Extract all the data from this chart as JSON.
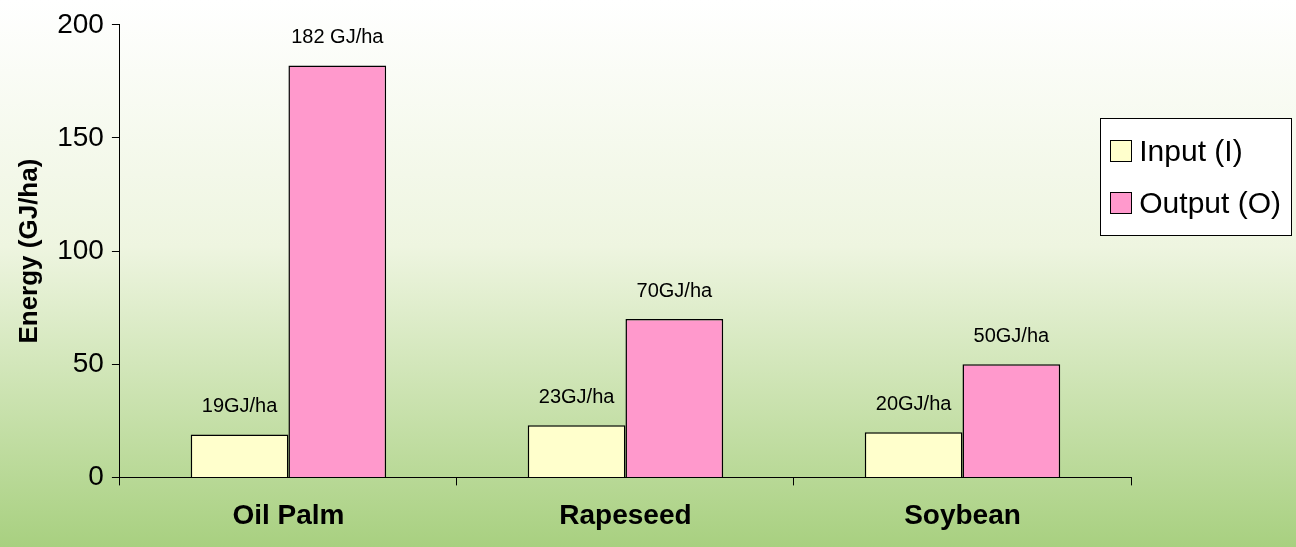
{
  "chart_data": {
    "type": "bar",
    "ylabel": "Energy (GJ/ha)",
    "categories": [
      "Oil Palm",
      "Rapeseed",
      "Soybean"
    ],
    "series": [
      {
        "name": "Input (I)",
        "color": "#ffffcc",
        "values": [
          19,
          23,
          20
        ],
        "value_labels": [
          "19GJ/ha",
          "23GJ/ha",
          "20GJ/ha"
        ]
      },
      {
        "name": "Output (O)",
        "color": "#ff99cc",
        "values": [
          182,
          70,
          50
        ],
        "value_labels": [
          "182 GJ/ha",
          "70GJ/ha",
          "50GJ/ha"
        ]
      }
    ],
    "ylim": [
      0,
      200
    ],
    "yticks": [
      0,
      50,
      100,
      150,
      200
    ],
    "grid": false,
    "legend": "right"
  }
}
